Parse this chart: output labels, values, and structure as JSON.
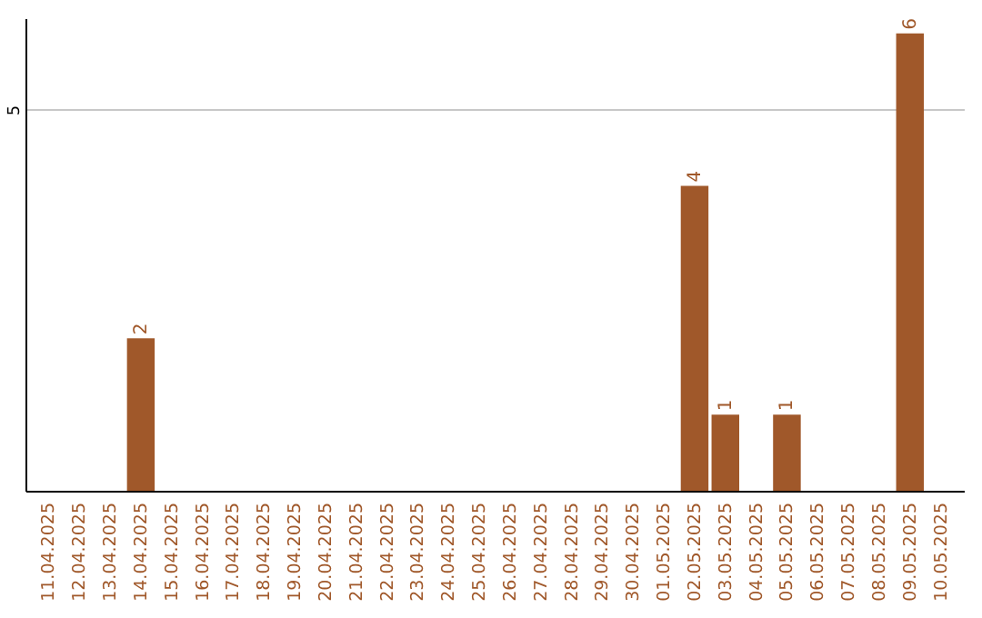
{
  "chart_data": {
    "type": "bar",
    "categories": [
      "11.04.2025",
      "12.04.2025",
      "13.04.2025",
      "14.04.2025",
      "15.04.2025",
      "16.04.2025",
      "17.04.2025",
      "18.04.2025",
      "19.04.2025",
      "20.04.2025",
      "21.04.2025",
      "22.04.2025",
      "23.04.2025",
      "24.04.2025",
      "25.04.2025",
      "26.04.2025",
      "27.04.2025",
      "28.04.2025",
      "29.04.2025",
      "30.04.2025",
      "01.05.2025",
      "02.05.2025",
      "03.05.2025",
      "04.05.2025",
      "05.05.2025",
      "06.05.2025",
      "07.05.2025",
      "08.05.2025",
      "09.05.2025",
      "10.05.2025"
    ],
    "values": [
      0,
      0,
      0,
      2,
      0,
      0,
      0,
      0,
      0,
      0,
      0,
      0,
      0,
      0,
      0,
      0,
      0,
      0,
      0,
      0,
      0,
      4,
      1,
      0,
      1,
      0,
      0,
      0,
      6,
      0
    ],
    "value_labels": [
      null,
      null,
      null,
      "2",
      null,
      null,
      null,
      null,
      null,
      null,
      null,
      null,
      null,
      null,
      null,
      null,
      null,
      null,
      null,
      null,
      null,
      "4",
      "1",
      null,
      "1",
      null,
      null,
      null,
      "6",
      null
    ],
    "color": "#a0582a",
    "ylim": [
      0,
      6.2
    ],
    "yticks": [
      5
    ],
    "grid": "y"
  }
}
